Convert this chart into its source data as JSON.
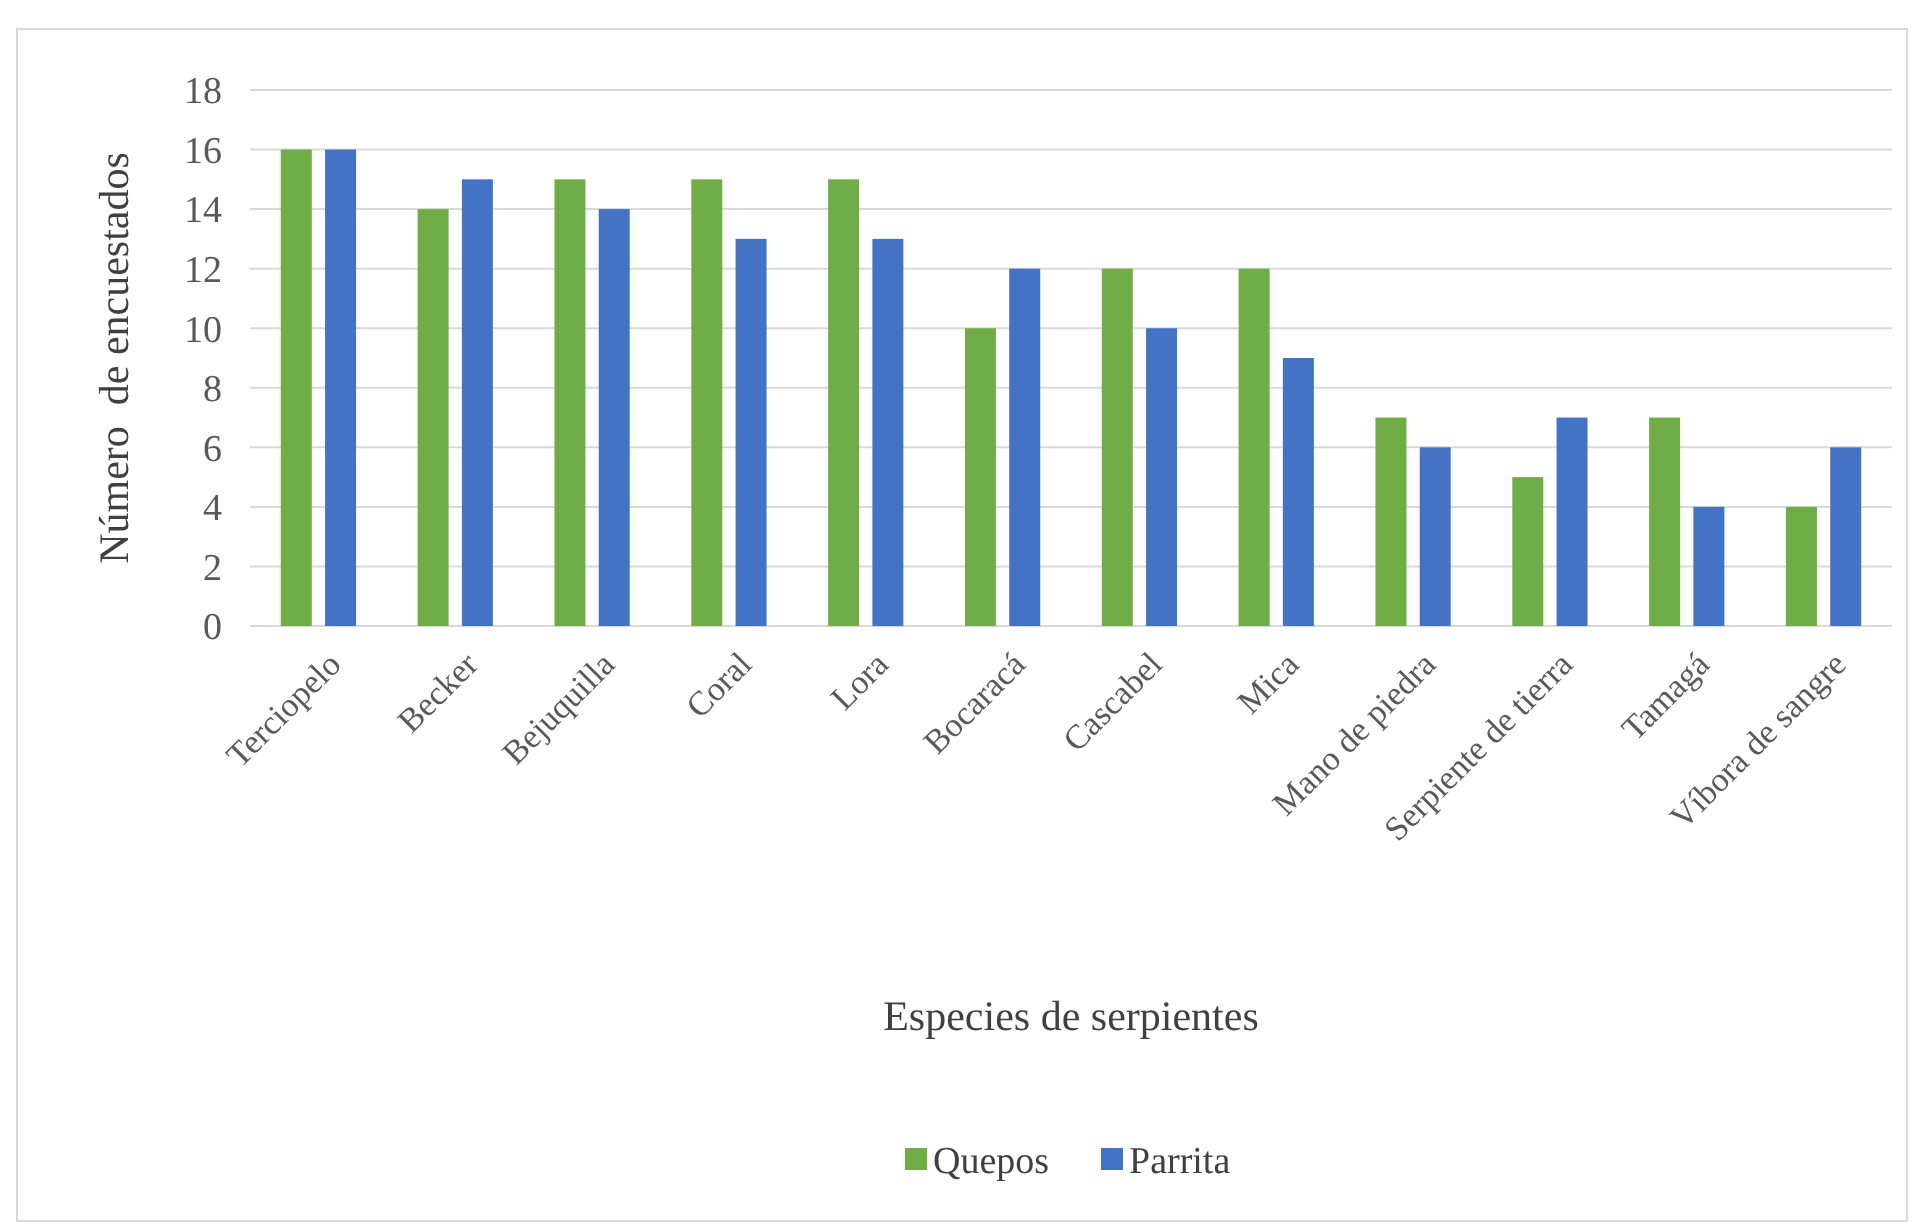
{
  "chart_data": {
    "type": "bar",
    "xlabel": "Especies de serpientes",
    "ylabel": "Número  de encuestados",
    "categories": [
      "Terciopelo",
      "Becker",
      "Bejuquilla",
      "Coral",
      "Lora",
      "Bocaracá",
      "Cascabel",
      "Mica",
      "Mano de piedra",
      "Serpiente de tierra",
      "Tamagá",
      "Víbora de sangre"
    ],
    "series": [
      {
        "name": "Quepos",
        "color": "#70ad47",
        "values": [
          16,
          14,
          15,
          15,
          15,
          10,
          12,
          12,
          7,
          5,
          7,
          4
        ]
      },
      {
        "name": "Parrita",
        "color": "#4472c4",
        "values": [
          16,
          15,
          14,
          13,
          13,
          12,
          10,
          9,
          6,
          7,
          4,
          6
        ]
      }
    ],
    "ylim": [
      0,
      18
    ],
    "yticks": [
      0,
      2,
      4,
      6,
      8,
      10,
      12,
      14,
      16,
      18
    ],
    "grid": "y",
    "legend": "bottom"
  }
}
